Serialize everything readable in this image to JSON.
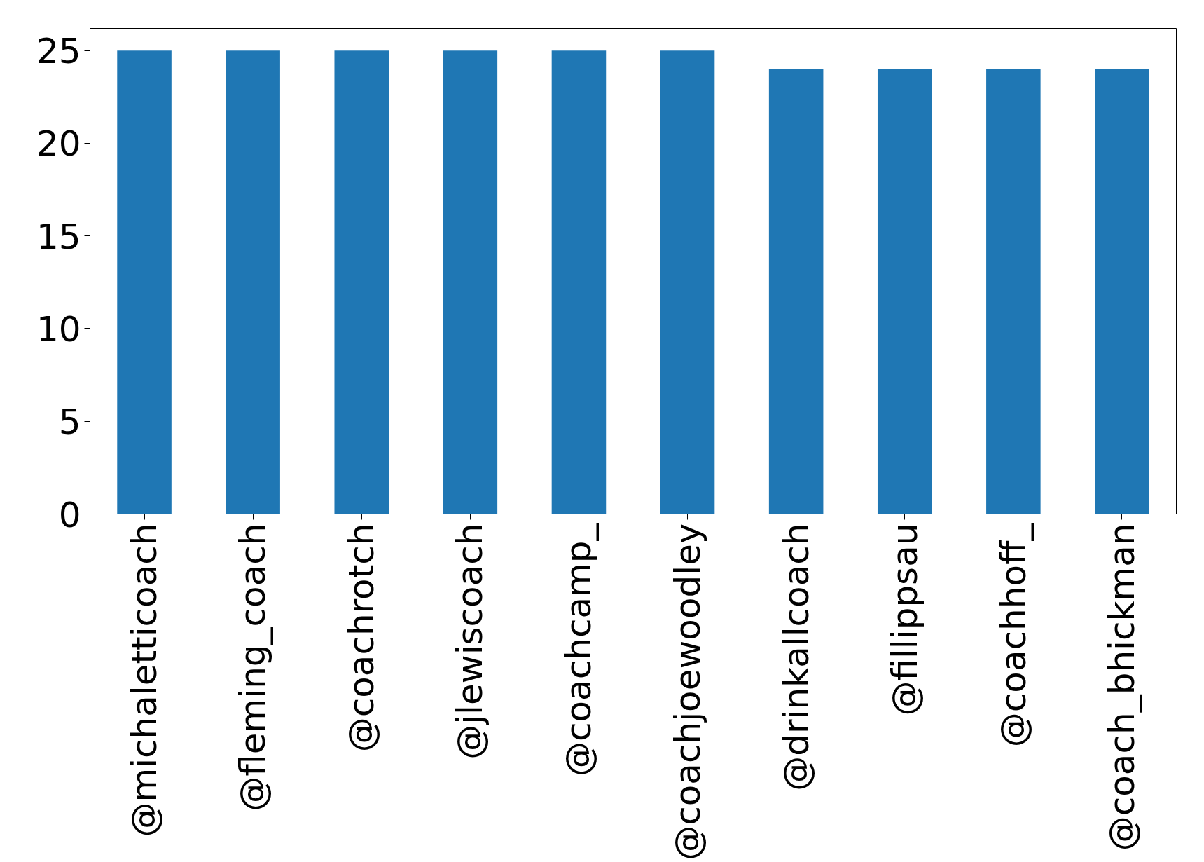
{
  "chart_data": {
    "type": "bar",
    "categories": [
      "@michaletticoach",
      "@fleming_coach",
      "@coachrotch",
      "@jlewiscoach",
      "@coachcamp_",
      "@coachjoewoodley",
      "@drinkallcoach",
      "@fillippsau",
      "@coachhoff_",
      "@coach_bhickman"
    ],
    "values": [
      25,
      25,
      25,
      25,
      25,
      25,
      24,
      24,
      24,
      24
    ],
    "color": "#1f77b4",
    "ylim": [
      0,
      26.2
    ],
    "yticks": [
      0,
      5,
      10,
      15,
      20,
      25
    ],
    "grid": false
  }
}
